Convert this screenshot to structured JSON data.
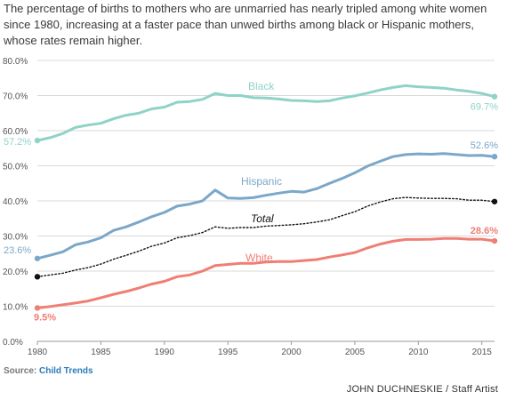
{
  "caption": "The percentage of births to mothers who are unmarried has nearly tripled among white women since 1980, increasing at a faster pace than unwed births among black or Hispanic mothers, whose rates remain higher.",
  "source_label": "Source:",
  "source_name": "Child Trends",
  "credit": "JOHN DUCHNESKIE / Staff Artist",
  "colors": {
    "black": "#8fd3c7",
    "hispanic": "#7ba7c9",
    "total": "#111111",
    "white": "#ef7f74",
    "grid": "#d9d9d9",
    "axis_text": "#555555",
    "link": "#2a7ab8"
  },
  "chart_data": {
    "type": "line",
    "xlim": [
      1980,
      2016
    ],
    "ylim": [
      0,
      80
    ],
    "x_ticks": [
      "1980",
      "1985",
      "1990",
      "1995",
      "2000",
      "2005",
      "2010",
      "2015"
    ],
    "y_ticks": [
      "0.0%",
      "10.0%",
      "20.0%",
      "30.0%",
      "40.0%",
      "50.0%",
      "60.0%",
      "70.0%",
      "80.0%"
    ],
    "grid": "horizontal",
    "x": [
      1980,
      1981,
      1982,
      1983,
      1984,
      1985,
      1986,
      1987,
      1988,
      1989,
      1990,
      1991,
      1992,
      1993,
      1994,
      1995,
      1996,
      1997,
      1998,
      1999,
      2000,
      2001,
      2002,
      2003,
      2004,
      2005,
      2006,
      2007,
      2008,
      2009,
      2010,
      2011,
      2012,
      2013,
      2014,
      2015,
      2016
    ],
    "series": [
      {
        "name": "Black",
        "key": "black",
        "style": "solid",
        "start_label": "57.2%",
        "end_label": "69.7%",
        "values": [
          57.2,
          58.0,
          59.2,
          60.9,
          61.6,
          62.1,
          63.4,
          64.4,
          65.0,
          66.2,
          66.7,
          68.1,
          68.3,
          68.9,
          70.6,
          70.0,
          70.0,
          69.4,
          69.3,
          69.0,
          68.6,
          68.5,
          68.3,
          68.5,
          69.3,
          69.9,
          70.7,
          71.6,
          72.3,
          72.8,
          72.5,
          72.3,
          72.1,
          71.6,
          71.2,
          70.6,
          69.7
        ]
      },
      {
        "name": "Hispanic",
        "key": "hispanic",
        "style": "solid",
        "start_label": "23.6%",
        "end_label": "52.6%",
        "values": [
          23.6,
          24.5,
          25.5,
          27.5,
          28.3,
          29.5,
          31.6,
          32.6,
          34.0,
          35.5,
          36.7,
          38.5,
          39.1,
          40.0,
          43.1,
          40.8,
          40.7,
          40.9,
          41.6,
          42.2,
          42.7,
          42.5,
          43.5,
          45.0,
          46.4,
          48.0,
          49.9,
          51.3,
          52.6,
          53.2,
          53.4,
          53.3,
          53.5,
          53.2,
          52.9,
          53.0,
          52.6
        ]
      },
      {
        "name": "Total",
        "key": "total",
        "style": "dotted",
        "start_label": "",
        "end_label": "",
        "values": [
          18.4,
          18.9,
          19.4,
          20.3,
          21.0,
          22.0,
          23.4,
          24.5,
          25.7,
          27.1,
          28.0,
          29.5,
          30.1,
          31.0,
          32.6,
          32.2,
          32.4,
          32.4,
          32.8,
          33.0,
          33.2,
          33.5,
          34.0,
          34.6,
          35.8,
          36.9,
          38.5,
          39.7,
          40.6,
          41.0,
          40.8,
          40.7,
          40.7,
          40.6,
          40.2,
          40.2,
          39.8
        ]
      },
      {
        "name": "White",
        "key": "white",
        "style": "solid",
        "start_label": "9.5%",
        "end_label": "28.6%",
        "values": [
          9.5,
          9.9,
          10.4,
          10.9,
          11.5,
          12.4,
          13.4,
          14.2,
          15.2,
          16.3,
          17.1,
          18.4,
          18.9,
          20.0,
          21.6,
          21.9,
          22.2,
          22.2,
          22.6,
          22.7,
          22.7,
          23.0,
          23.3,
          24.0,
          24.6,
          25.3,
          26.6,
          27.7,
          28.5,
          29.0,
          29.0,
          29.1,
          29.3,
          29.3,
          29.1,
          29.1,
          28.6
        ]
      }
    ]
  }
}
